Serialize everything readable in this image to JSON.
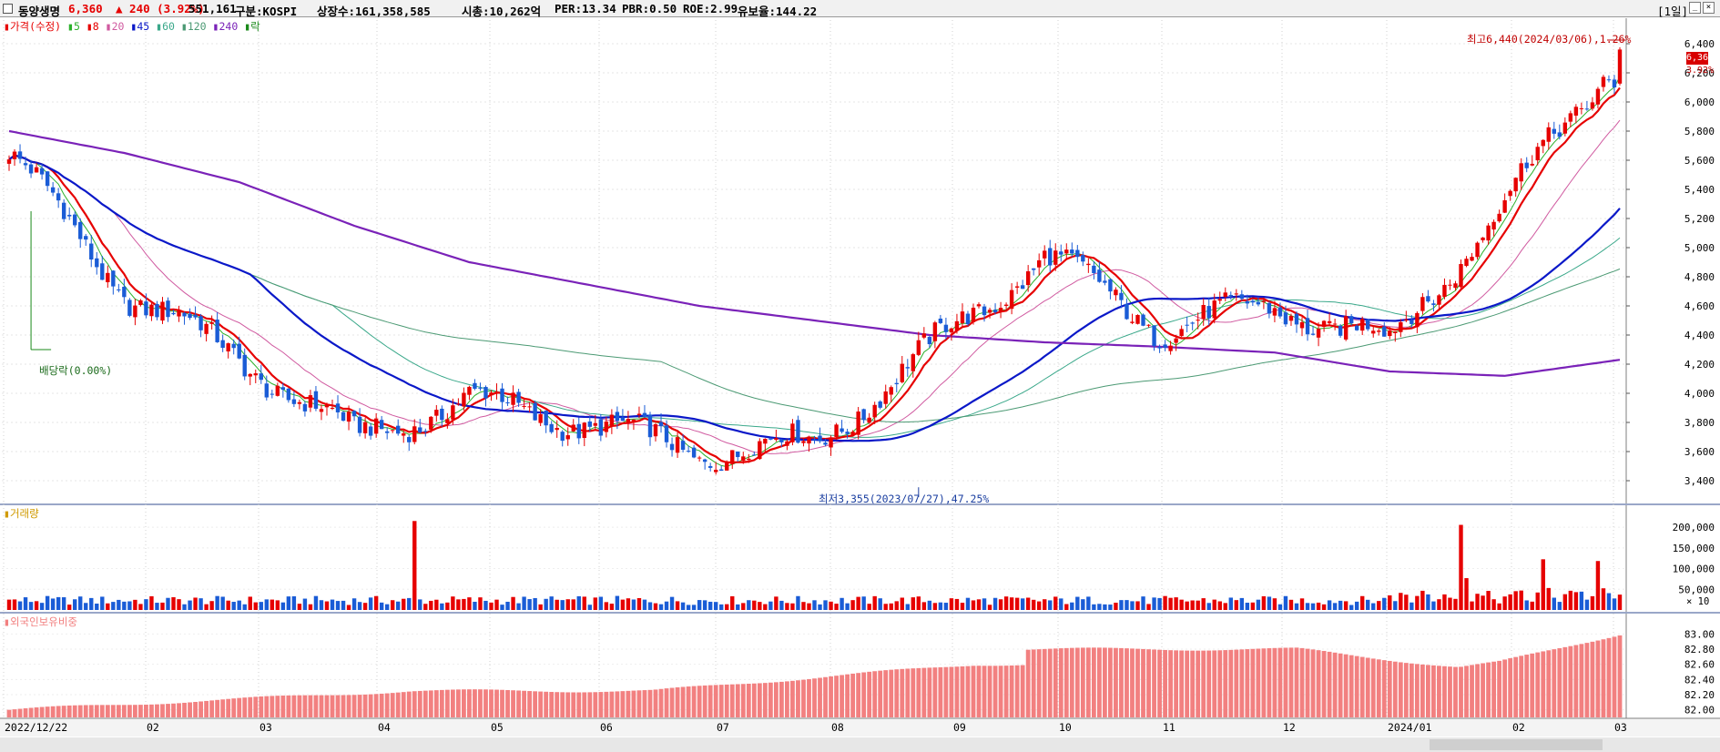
{
  "header": {
    "stock_name": "동양생명",
    "price": "6,360",
    "change": "▲ 240 (3.92%)",
    "volume": "551,161",
    "market": "구분:KOSPI",
    "shares": "상장수:161,358,585",
    "market_cap": "시총:10,262억",
    "per": "PER:13.34",
    "pbr": "PBR:0.50",
    "roe": "ROE:2.99",
    "reserve": "유보율:144.22",
    "period": "[1일]"
  },
  "colors": {
    "up": "#e60000",
    "down": "#1a5cd6",
    "ma5": "#2bb12b",
    "ma8": "#e60000",
    "ma20": "#d05aa0",
    "ma45": "#0a18c8",
    "ma60": "#3aa88a",
    "ma120": "#4c9a74",
    "ma240": "#7a22b8",
    "foreign": "#f28080"
  },
  "legend": {
    "price": "가격(수정)",
    "ma": [
      "5",
      "8",
      "20",
      "45",
      "60",
      "120",
      "240"
    ],
    "dividend": "락"
  },
  "price_panel": {
    "y_ticks": [
      "6,400",
      "6,200",
      "6,000",
      "5,800",
      "5,600",
      "5,400",
      "5,200",
      "5,000",
      "4,800",
      "4,600",
      "4,400",
      "4,200",
      "4,000",
      "3,800",
      "3,600",
      "3,400"
    ],
    "current_price": "6,360",
    "current_pct": "3.92%",
    "high_note": "최고6,440(2024/03/06),1.26%",
    "low_note": "최저3,355(2023/07/27),47.25%",
    "dividend_note": "배당락(0.00%)"
  },
  "volume_panel": {
    "title": "거래량",
    "y_ticks": [
      "200,000",
      "150,000",
      "100,000",
      "50,000"
    ],
    "unit": "× 10"
  },
  "foreign_panel": {
    "title": "외국인보유비중",
    "y_ticks": [
      "83.00",
      "82.80",
      "82.60",
      "82.40",
      "82.20",
      "82.00"
    ]
  },
  "x_axis": [
    "2022/12/22",
    "02",
    "03",
    "04",
    "05",
    "06",
    "07",
    "08",
    "09",
    "10",
    "11",
    "12",
    "2024/01",
    "02",
    "03"
  ],
  "chart_data": {
    "type": "line",
    "x": [
      "2022/12/22",
      "2023/02",
      "2023/03",
      "2023/04",
      "2023/05",
      "2023/06",
      "2023/07",
      "2023/08",
      "2023/09",
      "2023/10",
      "2023/11",
      "2023/12",
      "2024/01",
      "2024/02",
      "2024/03"
    ],
    "series": [
      {
        "name": "가격(수정)",
        "values": [
          5650,
          4700,
          4250,
          3700,
          3950,
          3800,
          3600,
          3650,
          4300,
          4950,
          4450,
          4600,
          4350,
          5300,
          6360
        ]
      },
      {
        "name": "240",
        "values": [
          5800,
          5650,
          5450,
          5150,
          4900,
          4750,
          4600,
          4500,
          4400,
          4350,
          4320,
          4280,
          4150,
          4120,
          4230
        ]
      }
    ],
    "ylim": [
      3300,
      6500
    ],
    "volume_ylim": [
      0,
      220000
    ],
    "foreign_ylim": [
      81.9,
      83.1
    ]
  }
}
